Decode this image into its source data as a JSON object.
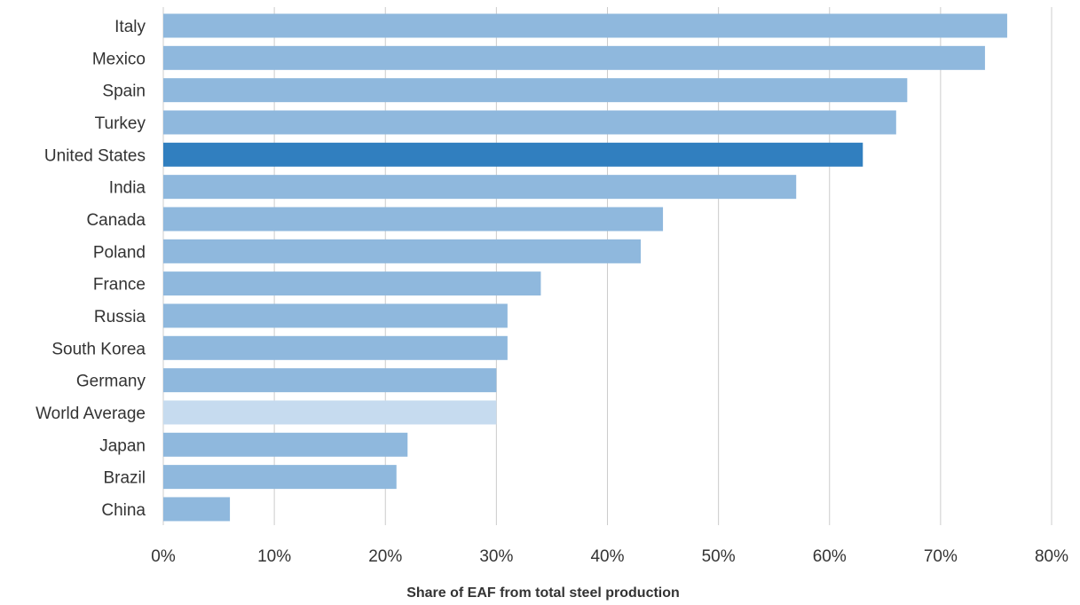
{
  "chart_data": {
    "type": "bar",
    "orientation": "horizontal",
    "categories": [
      "Italy",
      "Mexico",
      "Spain",
      "Turkey",
      "United States",
      "India",
      "Canada",
      "Poland",
      "France",
      "Russia",
      "South Korea",
      "Germany",
      "World Average",
      "Japan",
      "Brazil",
      "China"
    ],
    "values": [
      0.76,
      0.74,
      0.67,
      0.66,
      0.63,
      0.57,
      0.45,
      0.43,
      0.34,
      0.31,
      0.31,
      0.3,
      0.3,
      0.22,
      0.21,
      0.06
    ],
    "xlim": [
      0,
      0.8
    ],
    "ticks": [
      0,
      0.1,
      0.2,
      0.3,
      0.4,
      0.5,
      0.6,
      0.7,
      0.8
    ],
    "tick_labels": [
      "0%",
      "10%",
      "20%",
      "30%",
      "40%",
      "50%",
      "60%",
      "70%",
      "80%"
    ],
    "xlabel": "Share of EAF from total steel production",
    "title": "",
    "grid": "vertical",
    "colors": {
      "default": "#8fb8dd",
      "United States": "#317fbf",
      "World Average": "#c6dbef"
    }
  }
}
